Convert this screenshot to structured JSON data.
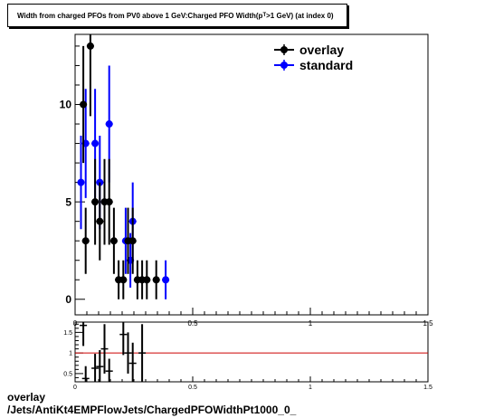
{
  "chart_data": [
    {
      "type": "scatter",
      "title": "Width from charged PFOs from PV0 above 1 GeV:Charged PFO Width(p",
      "title_sub": "T",
      "title_tail": ">1 GeV) (at index 0)",
      "xlim": [
        0,
        1.5
      ],
      "ylim": [
        -0.8,
        13.6
      ],
      "yticks": [
        0,
        5,
        10
      ],
      "xticks": [
        0,
        0.5,
        1,
        1.5
      ],
      "legend_placement": "top-right",
      "series": [
        {
          "name": "overlay",
          "color": "#000000",
          "points": [
            {
              "x": 0.035,
              "y": 10,
              "err": 3
            },
            {
              "x": 0.045,
              "y": 3,
              "err": 1.7
            },
            {
              "x": 0.065,
              "y": 13,
              "err": 3.6
            },
            {
              "x": 0.085,
              "y": 5,
              "err": 2.2
            },
            {
              "x": 0.105,
              "y": 4,
              "err": 2
            },
            {
              "x": 0.125,
              "y": 5,
              "err": 2.2
            },
            {
              "x": 0.145,
              "y": 5,
              "err": 2.2
            },
            {
              "x": 0.165,
              "y": 3,
              "err": 1.7
            },
            {
              "x": 0.185,
              "y": 1,
              "err": 1
            },
            {
              "x": 0.205,
              "y": 1,
              "err": 1
            },
            {
              "x": 0.225,
              "y": 3,
              "err": 1.7
            },
            {
              "x": 0.245,
              "y": 3,
              "err": 1.7
            },
            {
              "x": 0.265,
              "y": 1,
              "err": 1
            },
            {
              "x": 0.285,
              "y": 1,
              "err": 1
            },
            {
              "x": 0.305,
              "y": 1,
              "err": 1
            },
            {
              "x": 0.345,
              "y": 1,
              "err": 1
            }
          ]
        },
        {
          "name": "standard",
          "color": "#0000ff",
          "points": [
            {
              "x": 0.025,
              "y": 6,
              "err": 2.4
            },
            {
              "x": 0.045,
              "y": 8,
              "err": 2.8
            },
            {
              "x": 0.085,
              "y": 8,
              "err": 2.8
            },
            {
              "x": 0.105,
              "y": 6,
              "err": 2.4
            },
            {
              "x": 0.145,
              "y": 9,
              "err": 3
            },
            {
              "x": 0.215,
              "y": 3,
              "err": 1.7
            },
            {
              "x": 0.235,
              "y": 2,
              "err": 1.4
            },
            {
              "x": 0.245,
              "y": 4,
              "err": 2
            },
            {
              "x": 0.385,
              "y": 1,
              "err": 1
            }
          ]
        }
      ]
    },
    {
      "type": "scatter",
      "xlim": [
        0,
        1.5
      ],
      "ylim": [
        0.3,
        1.75
      ],
      "yticks": [
        0.5,
        1,
        1.5
      ],
      "xticks": [
        0,
        0.5,
        1,
        1.5
      ],
      "reference_line": 1,
      "reference_color": "#cc0000",
      "points": [
        {
          "x": 0.035,
          "y": 1.67,
          "err": 0.5
        },
        {
          "x": 0.045,
          "y": 0.38,
          "err": 0.3
        },
        {
          "x": 0.085,
          "y": 0.63,
          "err": 0.35
        },
        {
          "x": 0.105,
          "y": 0.67,
          "err": 0.4
        },
        {
          "x": 0.125,
          "y": 1.1,
          "err": 0.6
        },
        {
          "x": 0.145,
          "y": 0.56,
          "err": 0.3
        },
        {
          "x": 0.205,
          "y": 1.45,
          "err": 0.5
        },
        {
          "x": 0.225,
          "y": 1.0,
          "err": 0.5
        },
        {
          "x": 0.245,
          "y": 0.75,
          "err": 0.5
        },
        {
          "x": 0.285,
          "y": 1.0,
          "err": 0.7
        }
      ]
    }
  ],
  "footer": {
    "line1": "overlay",
    "line2": "/Jets/AntiKt4EMPFlowJets/ChargedPFOWidthPt1000_0_"
  }
}
